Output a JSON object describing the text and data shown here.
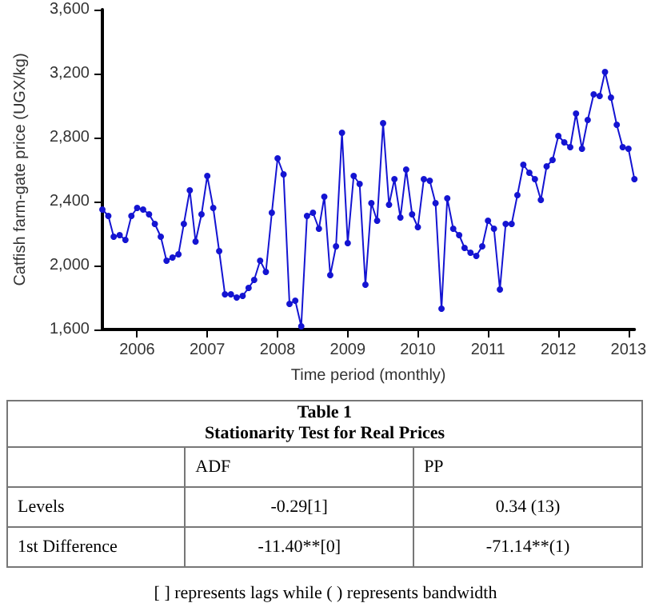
{
  "chart_data": {
    "type": "line",
    "xlabel": "Time period (monthly)",
    "ylabel": "Catfish farm-gate price (UGX/kg)",
    "x": [
      "2006-01",
      "2006-02",
      "2006-03",
      "2006-04",
      "2006-05",
      "2006-06",
      "2006-07",
      "2006-08",
      "2006-09",
      "2006-10",
      "2006-11",
      "2006-12",
      "2007-01",
      "2007-02",
      "2007-03",
      "2007-04",
      "2007-05",
      "2007-06",
      "2007-07",
      "2007-08",
      "2007-09",
      "2007-10",
      "2007-11",
      "2007-12",
      "2008-01",
      "2008-02",
      "2008-03",
      "2008-04",
      "2008-05",
      "2008-06",
      "2008-07",
      "2008-08",
      "2008-09",
      "2008-10",
      "2008-11",
      "2008-12",
      "2009-01",
      "2009-02",
      "2009-03",
      "2009-04",
      "2009-05",
      "2009-06",
      "2009-07",
      "2009-08",
      "2009-09",
      "2009-10",
      "2009-11",
      "2009-12",
      "2010-01",
      "2010-02",
      "2010-03",
      "2010-04",
      "2010-05",
      "2010-06",
      "2010-07",
      "2010-08",
      "2010-09",
      "2010-10",
      "2010-11",
      "2010-12",
      "2011-01",
      "2011-02",
      "2011-03",
      "2011-04",
      "2011-05",
      "2011-06",
      "2011-07",
      "2011-08",
      "2011-09",
      "2011-10",
      "2011-11",
      "2011-12",
      "2012-01",
      "2012-02",
      "2012-03",
      "2012-04",
      "2012-05",
      "2012-06",
      "2012-07",
      "2012-08",
      "2012-09",
      "2012-10",
      "2012-11",
      "2012-12",
      "2013-01",
      "2013-02",
      "2013-03",
      "2013-04",
      "2013-05",
      "2013-06",
      "2013-07",
      "2013-08"
    ],
    "series": [
      {
        "color": "#1414d2",
        "values": [
          2350,
          2310,
          2180,
          2190,
          2160,
          2310,
          2360,
          2350,
          2320,
          2260,
          2180,
          2030,
          2050,
          2070,
          2260,
          2470,
          2150,
          2320,
          2560,
          2360,
          2090,
          1820,
          1820,
          1800,
          1810,
          1860,
          1910,
          2030,
          1960,
          2330,
          2670,
          2570,
          1760,
          1780,
          1620,
          2310,
          2330,
          2230,
          2430,
          1940,
          2120,
          2830,
          2140,
          2560,
          2510,
          1880,
          2390,
          2280,
          2890,
          2380,
          2540,
          2300,
          2600,
          2320,
          2240,
          2540,
          2530,
          2390,
          1730,
          2420,
          2230,
          2190,
          2110,
          2080,
          2060,
          2120,
          2280,
          2230,
          1850,
          2260,
          2260,
          2440,
          2630,
          2580,
          2540,
          2410,
          2620,
          2660,
          2810,
          2770,
          2740,
          2950,
          2730,
          2910,
          3070,
          3060,
          3210,
          3050,
          2880,
          2740,
          2730,
          2540
        ]
      }
    ],
    "xlim": [
      "2006-01",
      "2013-08"
    ],
    "xticks": [
      {
        "value": "2006-07",
        "label": "2006"
      },
      {
        "value": "2007-07",
        "label": "2007"
      },
      {
        "value": "2008-07",
        "label": "2008"
      },
      {
        "value": "2009-07",
        "label": "2009"
      },
      {
        "value": "2010-07",
        "label": "2010"
      },
      {
        "value": "2011-07",
        "label": "2011"
      },
      {
        "value": "2012-07",
        "label": "2012"
      },
      {
        "value": "2013-07",
        "label": "2013"
      }
    ],
    "ylim": [
      1600,
      3600
    ],
    "yticks": [
      {
        "value": 1600,
        "label": "1,600"
      },
      {
        "value": 2000,
        "label": "2,000"
      },
      {
        "value": 2400,
        "label": "2,400"
      },
      {
        "value": 2800,
        "label": "2,800"
      },
      {
        "value": 3200,
        "label": "3,200"
      },
      {
        "value": 3600,
        "label": "3,600"
      }
    ],
    "grid": false,
    "marker": "circle",
    "line_style": "solid",
    "annotations": [
      "Table 1",
      "Stationarity Test for Real Prices",
      "ADF",
      "PP",
      "Levels",
      "-0.29[1]",
      "0.34 (13)",
      "1st Difference",
      "-11.40**[0]",
      "-71.14**(1)",
      "[ ] represents lags while ( ) represents bandwidth"
    ]
  }
}
